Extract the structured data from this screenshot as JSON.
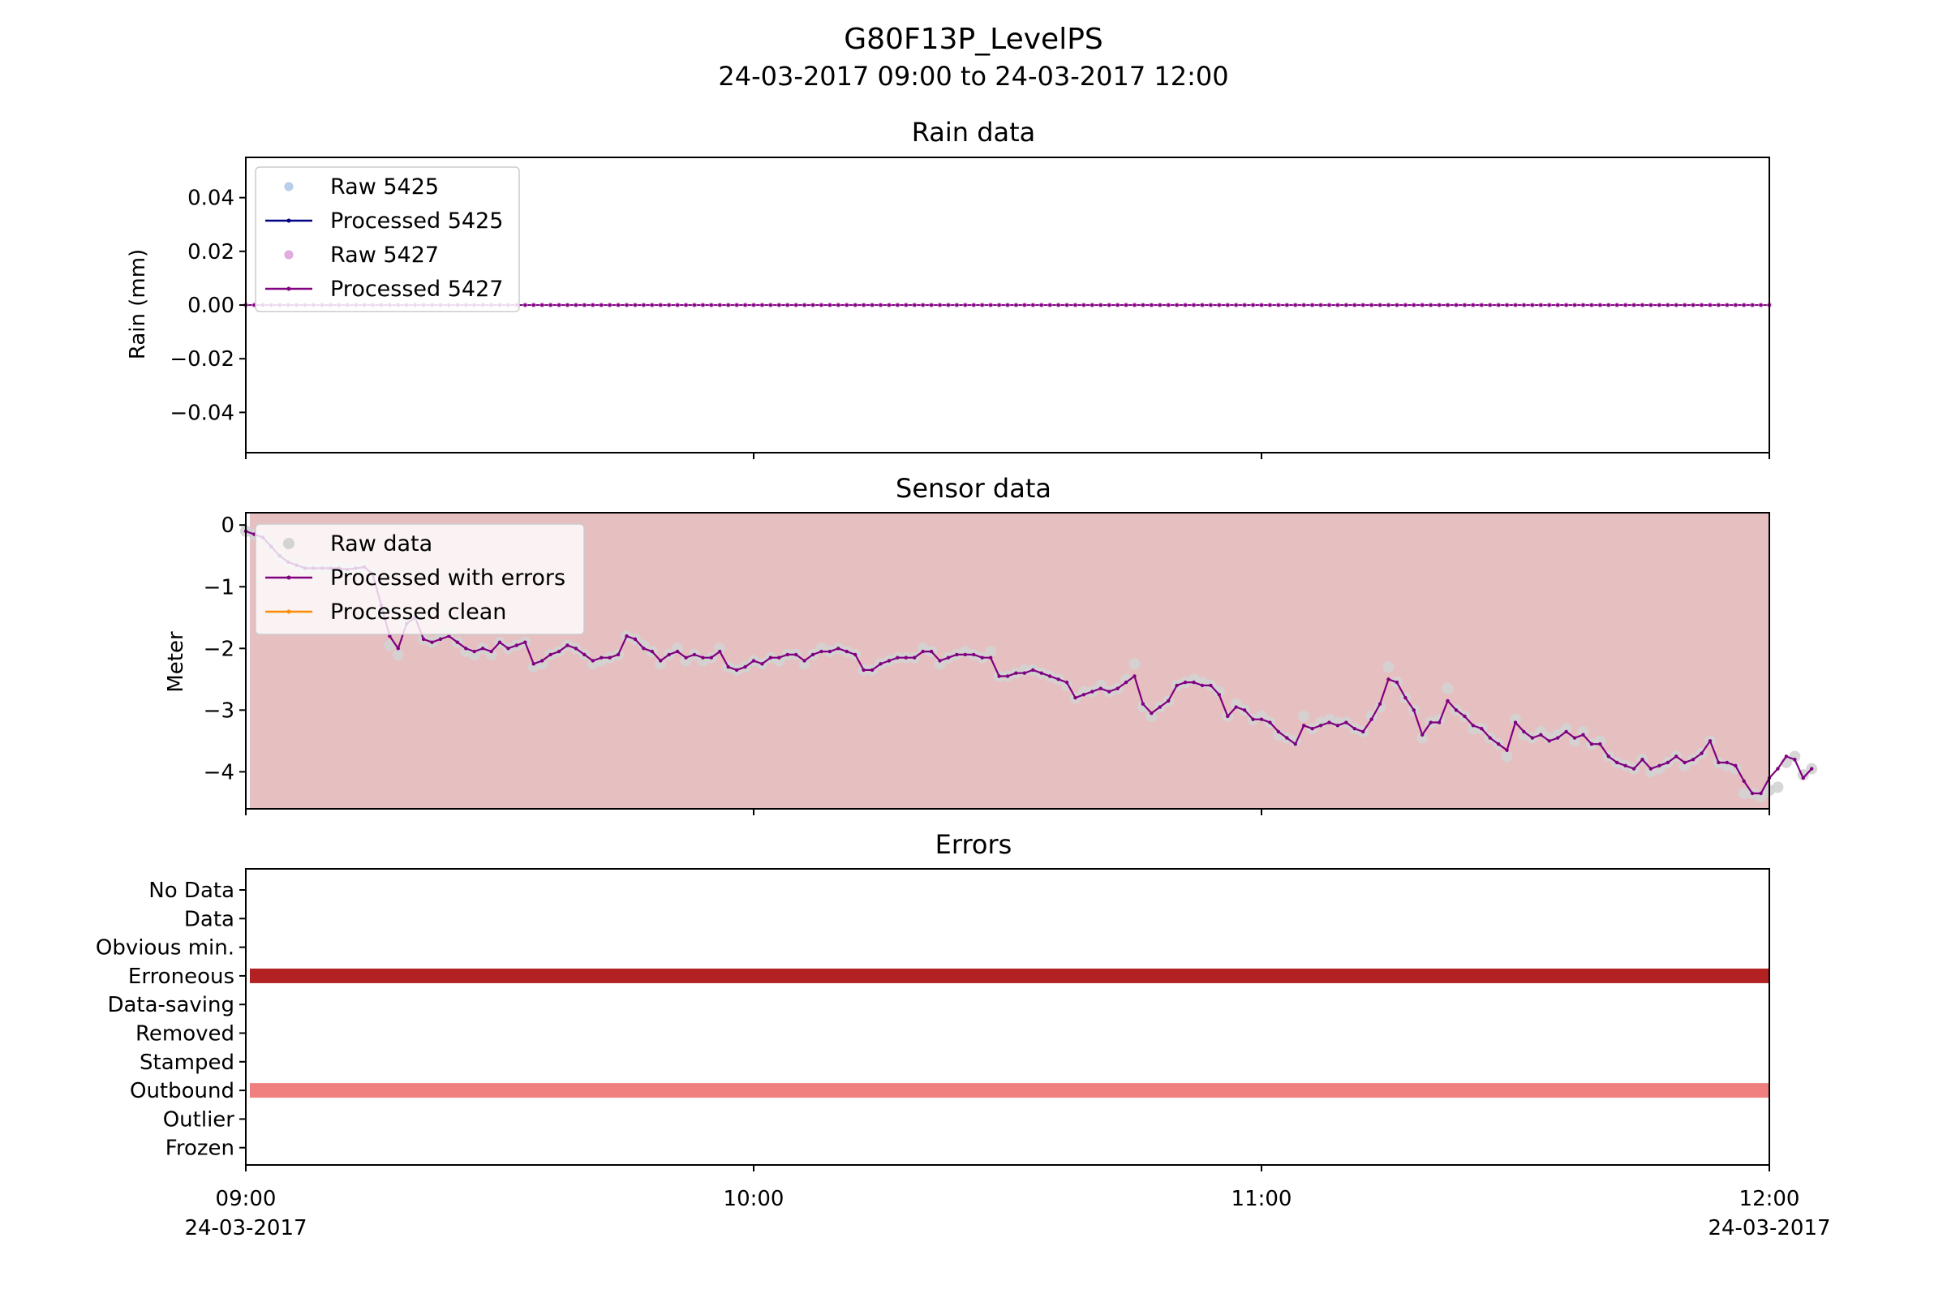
{
  "figure": {
    "title": "G80F13P_LevelPS",
    "subtitle": "24-03-2017 09:00 to 24-03-2017 12:00",
    "x_ticks": [
      {
        "value": 0,
        "time": "09:00",
        "date": "24-03-2017"
      },
      {
        "value": 1,
        "time": "10:00",
        "date": ""
      },
      {
        "value": 2,
        "time": "11:00",
        "date": ""
      },
      {
        "value": 3,
        "time": "12:00",
        "date": "24-03-2017"
      }
    ],
    "xlim": [
      0,
      3
    ],
    "x_unit": "hours since 09:00 on 24-03-2017"
  },
  "colors": {
    "raw_5425": "#aec7e8",
    "processed_5425": "#000080",
    "raw_5427": "#dda0dd",
    "processed_5427": "#800080",
    "sensor_raw": "#d3d3d3",
    "sensor_processed_errors": "#800080",
    "sensor_processed_clean": "#ff8c00",
    "sensor_background": "#e6bfc0",
    "error_erroneous": "#b22222",
    "error_outbound": "#f08080"
  },
  "chart_data": [
    {
      "type": "line",
      "title": "Rain data",
      "ylabel": "Rain (mm)",
      "ylim": [
        -0.055,
        0.055
      ],
      "y_ticks": [
        "0.04",
        "0.02",
        "0.00",
        "−0.02",
        "−0.04"
      ],
      "y_tick_values": [
        0.04,
        0.02,
        0.0,
        -0.02,
        -0.04
      ],
      "legend": "top-left",
      "series": [
        {
          "name": "Raw 5425",
          "style": "marker",
          "constant": 0.0
        },
        {
          "name": "Processed 5425",
          "style": "line",
          "constant": 0.0
        },
        {
          "name": "Raw 5427",
          "style": "marker",
          "constant": 0.0
        },
        {
          "name": "Processed 5427",
          "style": "line",
          "constant": 0.0
        }
      ],
      "n_points": 181
    },
    {
      "type": "line",
      "title": "Sensor data",
      "ylabel": "Meter",
      "ylim": [
        -4.6,
        0.2
      ],
      "y_ticks": [
        "0",
        "−1",
        "−2",
        "−3",
        "−4"
      ],
      "y_tick_values": [
        0,
        -1,
        -2,
        -3,
        -4
      ],
      "legend": "top-left",
      "legend_entries": [
        "Raw data",
        "Processed with errors",
        "Processed clean"
      ],
      "series": [
        {
          "name": "Processed with errors",
          "x_step": 0.0166667,
          "values": [
            -0.1,
            -0.15,
            -0.2,
            -0.35,
            -0.5,
            -0.6,
            -0.65,
            -0.7,
            -0.7,
            -0.7,
            -0.7,
            -0.7,
            -0.72,
            -0.7,
            -0.68,
            -0.8,
            -1.3,
            -1.8,
            -2.0,
            -1.6,
            -1.5,
            -1.85,
            -1.9,
            -1.85,
            -1.8,
            -1.9,
            -2.0,
            -2.05,
            -2.0,
            -2.05,
            -1.9,
            -2.0,
            -1.95,
            -1.9,
            -2.25,
            -2.2,
            -2.1,
            -2.05,
            -1.95,
            -2.0,
            -2.1,
            -2.2,
            -2.15,
            -2.15,
            -2.1,
            -1.8,
            -1.85,
            -2.0,
            -2.05,
            -2.2,
            -2.1,
            -2.05,
            -2.15,
            -2.1,
            -2.15,
            -2.15,
            -2.05,
            -2.3,
            -2.35,
            -2.3,
            -2.2,
            -2.25,
            -2.15,
            -2.15,
            -2.1,
            -2.1,
            -2.2,
            -2.1,
            -2.05,
            -2.05,
            -2.0,
            -2.05,
            -2.1,
            -2.35,
            -2.35,
            -2.25,
            -2.2,
            -2.15,
            -2.15,
            -2.15,
            -2.05,
            -2.05,
            -2.2,
            -2.15,
            -2.1,
            -2.1,
            -2.1,
            -2.15,
            -2.15,
            -2.45,
            -2.45,
            -2.4,
            -2.4,
            -2.35,
            -2.4,
            -2.45,
            -2.5,
            -2.55,
            -2.8,
            -2.75,
            -2.7,
            -2.65,
            -2.7,
            -2.65,
            -2.55,
            -2.45,
            -2.9,
            -3.05,
            -2.95,
            -2.85,
            -2.6,
            -2.55,
            -2.55,
            -2.6,
            -2.6,
            -2.75,
            -3.1,
            -2.95,
            -3.0,
            -3.15,
            -3.15,
            -3.2,
            -3.35,
            -3.45,
            -3.55,
            -3.25,
            -3.3,
            -3.25,
            -3.2,
            -3.25,
            -3.2,
            -3.3,
            -3.35,
            -3.15,
            -2.9,
            -2.5,
            -2.55,
            -2.8,
            -3.0,
            -3.4,
            -3.2,
            -3.2,
            -2.85,
            -3.0,
            -3.1,
            -3.25,
            -3.3,
            -3.45,
            -3.55,
            -3.65,
            -3.2,
            -3.35,
            -3.45,
            -3.4,
            -3.5,
            -3.45,
            -3.35,
            -3.45,
            -3.4,
            -3.55,
            -3.55,
            -3.75,
            -3.85,
            -3.9,
            -3.95,
            -3.8,
            -3.95,
            -3.9,
            -3.85,
            -3.75,
            -3.85,
            -3.8,
            -3.7,
            -3.5,
            -3.85,
            -3.85,
            -3.9,
            -4.15,
            -4.35,
            -4.35,
            -4.1,
            -3.95,
            -3.75,
            -3.8,
            -4.1,
            -3.95
          ]
        },
        {
          "name": "Raw data",
          "x_step": 0.0166667,
          "values": [
            -0.1,
            -0.15,
            -0.2,
            -0.35,
            -0.5,
            -0.6,
            -0.65,
            -0.7,
            -0.7,
            -0.7,
            -0.7,
            -0.7,
            -0.72,
            -0.7,
            -0.68,
            -0.8,
            -1.4,
            -1.95,
            -2.1,
            -1.6,
            -1.5,
            -1.85,
            -1.9,
            -1.8,
            -1.75,
            -1.9,
            -2.05,
            -2.1,
            -2.0,
            -2.1,
            -1.9,
            -2.0,
            -1.95,
            -1.9,
            -2.3,
            -2.25,
            -2.1,
            -2.05,
            -1.95,
            -2.0,
            -2.1,
            -2.25,
            -2.2,
            -2.15,
            -2.1,
            -1.8,
            -1.85,
            -1.95,
            -2.05,
            -2.25,
            -2.1,
            -2.0,
            -2.2,
            -2.1,
            -2.2,
            -2.15,
            -2.0,
            -2.3,
            -2.35,
            -2.3,
            -2.2,
            -2.25,
            -2.15,
            -2.2,
            -2.1,
            -2.1,
            -2.25,
            -2.1,
            -2.0,
            -2.05,
            -2.0,
            -2.05,
            -2.1,
            -2.35,
            -2.35,
            -2.25,
            -2.2,
            -2.15,
            -2.15,
            -2.15,
            -2.0,
            -2.05,
            -2.25,
            -2.15,
            -2.1,
            -2.05,
            -2.1,
            -2.15,
            -2.05,
            -2.45,
            -2.45,
            -2.4,
            -2.35,
            -2.35,
            -2.4,
            -2.45,
            -2.5,
            -2.6,
            -2.8,
            -2.7,
            -2.7,
            -2.6,
            -2.7,
            -2.65,
            -2.5,
            -2.25,
            -2.95,
            -3.1,
            -2.95,
            -2.85,
            -2.6,
            -2.55,
            -2.5,
            -2.55,
            -2.6,
            -2.7,
            -3.1,
            -2.9,
            -3.0,
            -3.15,
            -3.1,
            -3.2,
            -3.4,
            -3.45,
            -3.5,
            -3.1,
            -3.3,
            -3.2,
            -3.15,
            -3.2,
            -3.2,
            -3.3,
            -3.35,
            -3.1,
            -2.95,
            -2.3,
            -2.55,
            -2.8,
            -3.0,
            -3.45,
            -3.2,
            -3.15,
            -2.65,
            -3.0,
            -3.1,
            -3.3,
            -3.3,
            -3.45,
            -3.55,
            -3.75,
            -3.15,
            -3.4,
            -3.45,
            -3.35,
            -3.45,
            -3.4,
            -3.3,
            -3.5,
            -3.35,
            -3.55,
            -3.5,
            -3.75,
            -3.85,
            -3.9,
            -3.95,
            -3.8,
            -4.0,
            -3.95,
            -3.85,
            -3.75,
            -3.9,
            -3.8,
            -3.7,
            -3.5,
            -3.85,
            -3.9,
            -3.95,
            -4.35,
            -4.35,
            -4.4,
            -4.3,
            -4.25,
            -3.85,
            -3.75,
            -4.05,
            -3.95
          ]
        },
        {
          "name": "Processed clean",
          "x_step": 0.0166667,
          "values": []
        }
      ],
      "background_span": [
        0,
        3
      ]
    },
    {
      "type": "bar",
      "title": "Errors",
      "categories": [
        "No Data",
        "Data",
        "Obvious min.",
        "Erroneous",
        "Data-saving",
        "Removed",
        "Stamped",
        "Outbound",
        "Outlier",
        "Frozen"
      ],
      "active": [
        {
          "category": "Erroneous",
          "x_start": 0.0,
          "x_end": 3.0,
          "color_key": "error_erroneous"
        },
        {
          "category": "Outbound",
          "x_start": 0.0,
          "x_end": 3.0,
          "color_key": "error_outbound"
        }
      ]
    }
  ]
}
